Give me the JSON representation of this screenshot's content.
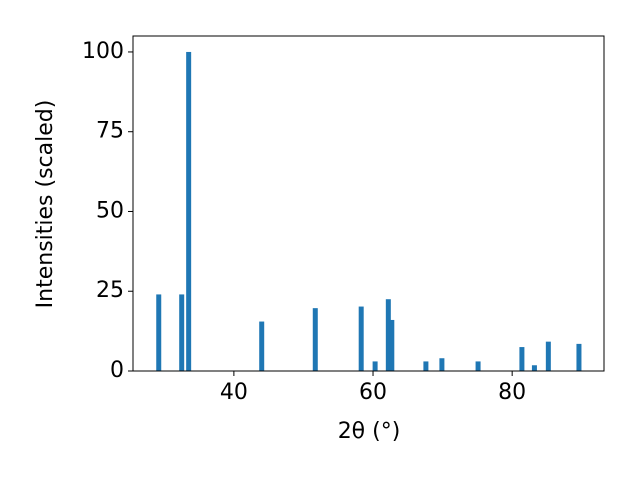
{
  "chart_data": {
    "type": "bar",
    "x": [
      29.2,
      32.5,
      33.5,
      44.0,
      51.7,
      58.3,
      60.3,
      62.2,
      62.7,
      67.6,
      69.9,
      75.1,
      81.4,
      83.2,
      85.2,
      89.6
    ],
    "values": [
      24,
      24,
      100,
      15.5,
      19.7,
      20.2,
      3,
      22.5,
      16,
      3,
      4,
      3,
      7.5,
      1.8,
      9.2,
      8.5
    ],
    "color": "#1f77b4",
    "xlabel": "2θ (°)",
    "ylabel": "Intensities (scaled)",
    "xlim": [
      25.5,
      93.2
    ],
    "ylim": [
      0,
      105
    ],
    "xticks": [
      40,
      60,
      80
    ],
    "yticks": [
      0,
      25,
      50,
      75,
      100
    ]
  }
}
